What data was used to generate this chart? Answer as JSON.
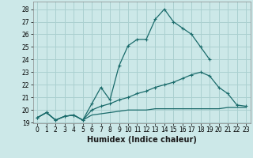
{
  "xlabel": "Humidex (Indice chaleur)",
  "bg_color": "#cce8e8",
  "grid_color": "#aad0d0",
  "line_color": "#1a6b6b",
  "xlim": [
    -0.5,
    23.5
  ],
  "ylim": [
    18.95,
    28.6
  ],
  "xticks": [
    0,
    1,
    2,
    3,
    4,
    5,
    6,
    7,
    8,
    9,
    10,
    11,
    12,
    13,
    14,
    15,
    16,
    17,
    18,
    19,
    20,
    21,
    22,
    23
  ],
  "yticks": [
    19,
    20,
    21,
    22,
    23,
    24,
    25,
    26,
    27,
    28
  ],
  "line1_x": [
    0,
    1,
    2,
    3,
    4,
    5,
    6,
    7,
    8,
    9,
    10,
    11,
    12,
    13,
    14,
    15,
    16,
    17,
    18,
    19
  ],
  "line1_y": [
    19.4,
    19.8,
    19.2,
    19.5,
    19.6,
    19.2,
    20.5,
    21.8,
    20.8,
    23.5,
    25.1,
    25.6,
    25.6,
    27.2,
    28.0,
    27.0,
    26.5,
    26.0,
    25.0,
    24.0
  ],
  "line2_x": [
    0,
    1,
    2,
    3,
    4,
    5,
    6,
    7,
    8,
    9,
    10,
    11,
    12,
    13,
    14,
    15,
    16,
    17,
    18,
    19,
    20,
    21,
    22,
    23
  ],
  "line2_y": [
    19.4,
    19.8,
    19.2,
    19.5,
    19.6,
    19.2,
    20.0,
    20.3,
    20.5,
    20.8,
    21.0,
    21.3,
    21.5,
    21.8,
    22.0,
    22.2,
    22.5,
    22.8,
    23.0,
    22.7,
    21.8,
    21.3,
    20.4,
    20.3
  ],
  "line3_x": [
    0,
    1,
    2,
    3,
    4,
    5,
    6,
    7,
    8,
    9,
    10,
    11,
    12,
    13,
    14,
    15,
    16,
    17,
    18,
    19,
    20,
    21,
    22,
    23
  ],
  "line3_y": [
    19.4,
    19.8,
    19.2,
    19.5,
    19.6,
    19.2,
    19.6,
    19.7,
    19.8,
    19.9,
    20.0,
    20.0,
    20.0,
    20.1,
    20.1,
    20.1,
    20.1,
    20.1,
    20.1,
    20.1,
    20.1,
    20.2,
    20.2,
    20.2
  ]
}
